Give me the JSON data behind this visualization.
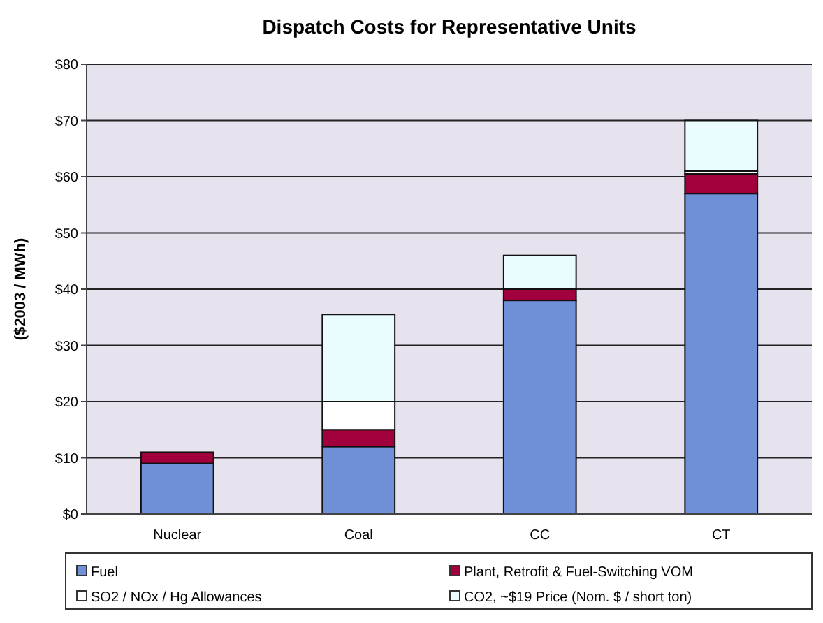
{
  "chart_data": {
    "type": "bar",
    "title": "Dispatch Costs for Representative Units",
    "ylabel": "($2003 / MWh)",
    "categories": [
      "Nuclear",
      "Coal",
      "CC",
      "CT"
    ],
    "stacked": true,
    "series": [
      {
        "name": "Fuel",
        "color": "#6f8fd6",
        "values": [
          9,
          12,
          38,
          57
        ]
      },
      {
        "name": "Plant, Retrofit & Fuel-Switching VOM",
        "color": "#a0003c",
        "values": [
          2,
          3,
          2,
          3.5
        ]
      },
      {
        "name": "SO2 / NOx / Hg Allowances",
        "color": "#ffffff",
        "values": [
          0,
          5,
          0,
          0.5
        ]
      },
      {
        "name": "CO2, ~$19  Price (Nom. $ / short ton)",
        "color": "#eafcfd",
        "values": [
          0,
          15.5,
          6,
          9
        ]
      }
    ],
    "ylim": [
      0,
      80
    ],
    "yticks": [
      {
        "value": 0,
        "label": "$0"
      },
      {
        "value": 10,
        "label": "$10"
      },
      {
        "value": 20,
        "label": "$20"
      },
      {
        "value": 30,
        "label": "$30"
      },
      {
        "value": 40,
        "label": "$40"
      },
      {
        "value": 50,
        "label": "$50"
      },
      {
        "value": 60,
        "label": "$60"
      },
      {
        "value": 70,
        "label": "$70"
      },
      {
        "value": 80,
        "label": "$80"
      }
    ],
    "grid": "y",
    "legend": "bottom"
  }
}
